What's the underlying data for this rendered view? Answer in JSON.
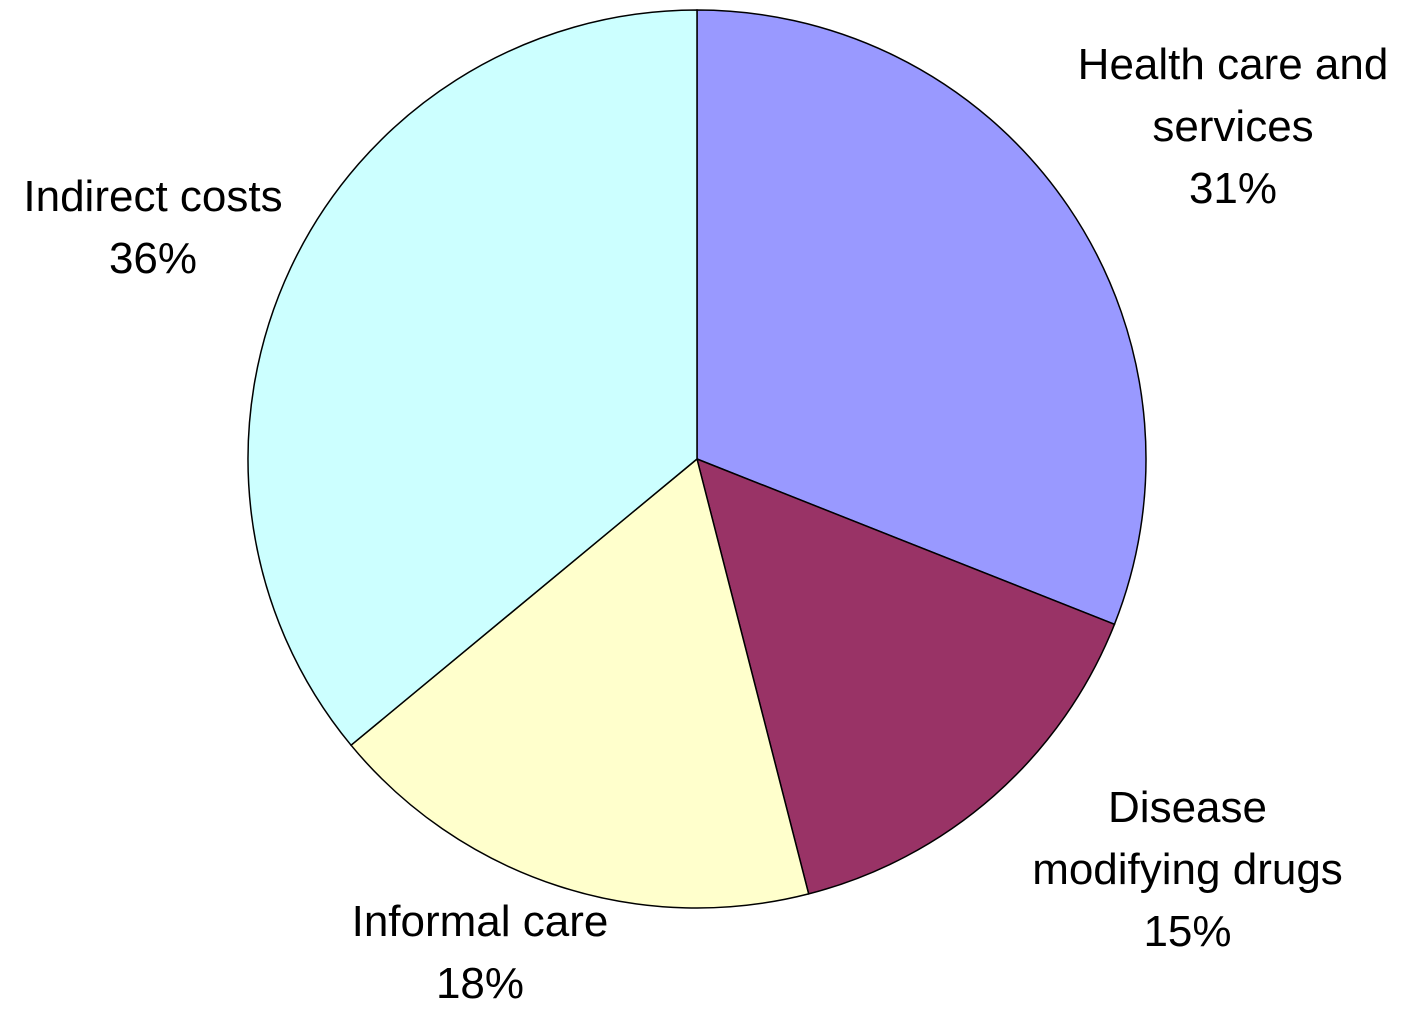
{
  "chart_data": {
    "type": "pie",
    "categories": [
      "Health care and services",
      "Disease modifying drugs",
      "Informal care",
      "Indirect costs"
    ],
    "values": [
      31,
      15,
      18,
      36
    ],
    "value_labels": [
      "31%",
      "15%",
      "18%",
      "36%"
    ],
    "colors": [
      "#9999ff",
      "#993366",
      "#ffffcc",
      "#ccffff"
    ]
  }
}
